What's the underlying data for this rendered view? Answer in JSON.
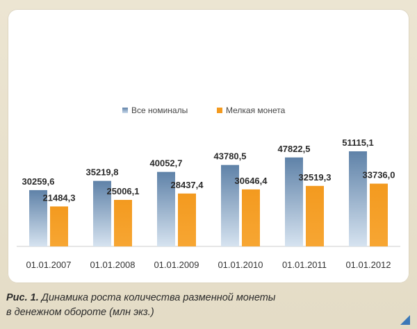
{
  "chart_data": {
    "type": "bar",
    "title": "",
    "categories": [
      "01.01.2007",
      "01.01.2008",
      "01.01.2009",
      "01.01.2010",
      "01.01.2011",
      "01.01.2012"
    ],
    "series": [
      {
        "name": "Все номиналы",
        "values": [
          30259.6,
          35219.8,
          40052.7,
          43780.5,
          47822.5,
          51115.1
        ],
        "labels": [
          "30259,6",
          "35219,8",
          "40052,7",
          "43780,5",
          "47822,5",
          "51115,1"
        ],
        "color": "#7d9fc2"
      },
      {
        "name": "Мелкая монета",
        "values": [
          21484.3,
          25006.1,
          28437.4,
          30646.4,
          32519.3,
          33736.0
        ],
        "labels": [
          "21484,3",
          "25006,1",
          "28437,4",
          "30646,4",
          "32519,3",
          "33736,0"
        ],
        "color": "#f39a1f"
      }
    ],
    "ylim": [
      0,
      60000
    ],
    "grid": false,
    "legend_position": "top-center",
    "xlabel": "",
    "ylabel": ""
  },
  "caption": {
    "lead": "Рис. 1.",
    "line1": "Динамика роста количества разменной монеты",
    "line2": "в денежном обороте (млн экз.)"
  },
  "colors": {
    "accent": "#3b78b8",
    "background": "#e8e0cb"
  }
}
